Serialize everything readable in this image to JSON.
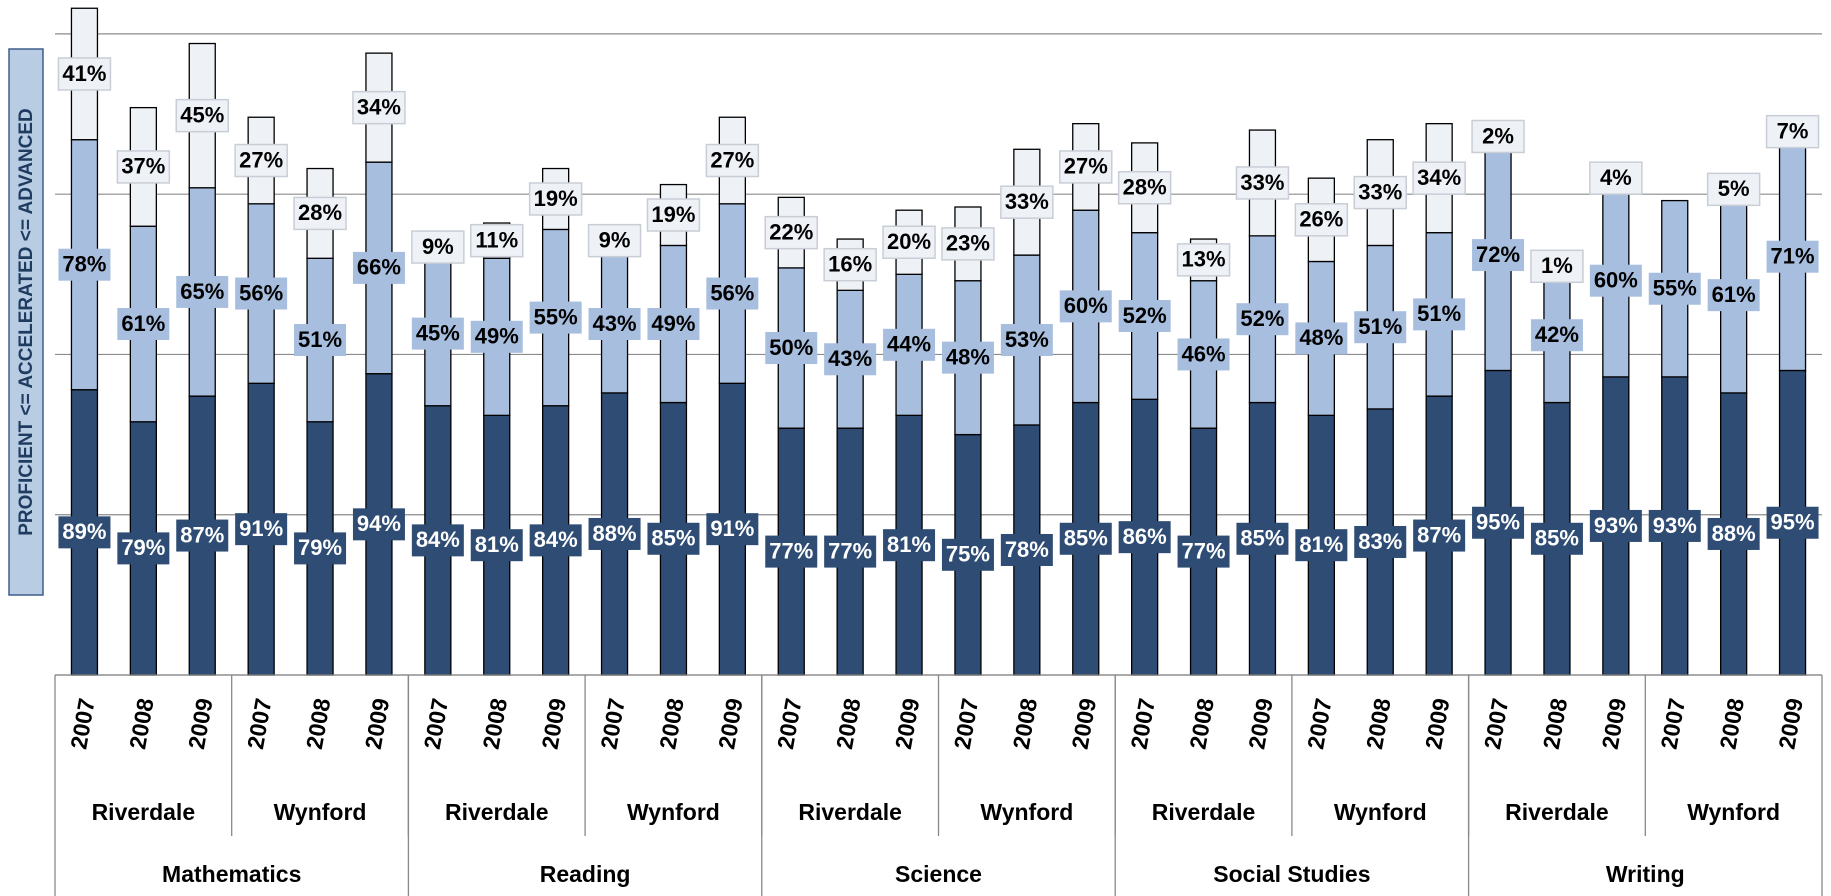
{
  "chart_data": {
    "type": "stacked-bar",
    "y_label": "PROFICIENT <= ACCELERATED <= ADVANCED",
    "categories": [
      "2007",
      "2008",
      "2009",
      "2007",
      "2008",
      "2009",
      "2007",
      "2008",
      "2009",
      "2007",
      "2008",
      "2009",
      "2007",
      "2008",
      "2009",
      "2007",
      "2008",
      "2009",
      "2007",
      "2008",
      "2009",
      "2007",
      "2008",
      "2009",
      "2007",
      "2008",
      "2009",
      "2007",
      "2008",
      "2009"
    ],
    "schools": [
      "Riverdale",
      "Wynford",
      "Riverdale",
      "Wynford",
      "Riverdale",
      "Wynford",
      "Riverdale",
      "Wynford",
      "Riverdale",
      "Wynford"
    ],
    "subjects": [
      "Mathematics",
      "Reading",
      "Science",
      "Social Studies",
      "Writing"
    ],
    "series": [
      {
        "color": "#2f4d74",
        "label_color": "#ffffff",
        "values": [
          89,
          79,
          87,
          91,
          79,
          94,
          84,
          81,
          84,
          88,
          85,
          91,
          77,
          77,
          81,
          75,
          78,
          85,
          86,
          77,
          85,
          81,
          83,
          87,
          95,
          85,
          93,
          93,
          88,
          95
        ],
        "value_labels": [
          "89%",
          "79%",
          "87%",
          "91%",
          "79%",
          "94%",
          "84%",
          "81%",
          "84%",
          "88%",
          "85%",
          "91%",
          "77%",
          "77%",
          "81%",
          "75%",
          "78%",
          "85%",
          "86%",
          "77%",
          "85%",
          "81%",
          "83%",
          "87%",
          "95%",
          "85%",
          "93%",
          "93%",
          "88%",
          "95%"
        ]
      },
      {
        "color": "#a7bedf",
        "label_color": "#000000",
        "values": [
          78,
          61,
          65,
          56,
          51,
          66,
          45,
          49,
          55,
          43,
          49,
          56,
          50,
          43,
          44,
          48,
          53,
          60,
          52,
          46,
          52,
          48,
          51,
          51,
          72,
          42,
          60,
          55,
          61,
          71
        ],
        "value_labels": [
          "78%",
          "61%",
          "65%",
          "56%",
          "51%",
          "66%",
          "45%",
          "49%",
          "55%",
          "43%",
          "49%",
          "56%",
          "50%",
          "43%",
          "44%",
          "48%",
          "53%",
          "60%",
          "52%",
          "46%",
          "52%",
          "48%",
          "51%",
          "51%",
          "72%",
          "42%",
          "60%",
          "55%",
          "61%",
          "71%"
        ]
      },
      {
        "color": "#eef2f7",
        "label_color": "#000000",
        "values": [
          41,
          37,
          45,
          27,
          28,
          34,
          9,
          11,
          19,
          9,
          19,
          27,
          22,
          16,
          20,
          23,
          33,
          27,
          28,
          13,
          33,
          26,
          33,
          34,
          2,
          1,
          4,
          null,
          5,
          7
        ],
        "value_labels": [
          "41%",
          "37%",
          "45%",
          "27%",
          "28%",
          "34%",
          "9%",
          "11%",
          "19%",
          "9%",
          "19%",
          "27%",
          "22%",
          "16%",
          "20%",
          "23%",
          "33%",
          "27%",
          "28%",
          "13%",
          "33%",
          "26%",
          "33%",
          "34%",
          "2%",
          "1%",
          "4%",
          null,
          "5%",
          "7%"
        ]
      }
    ],
    "ylim": [
      0,
      210
    ],
    "yticks": [
      0,
      50,
      100,
      150,
      200
    ],
    "grid": true
  }
}
